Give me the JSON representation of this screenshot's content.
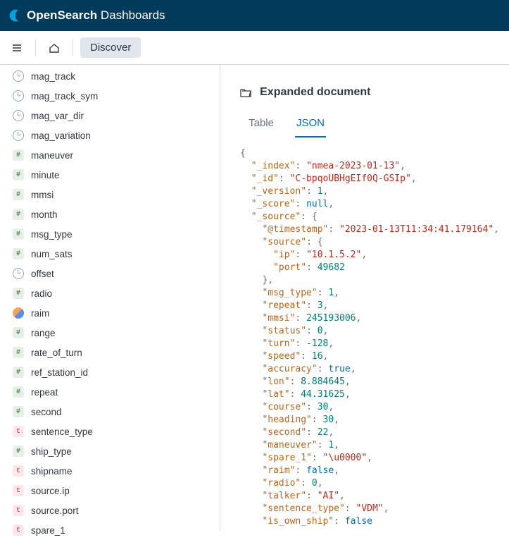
{
  "brand": {
    "part1": "Open",
    "part2": "Search",
    "part3": " Dashboards"
  },
  "nav": {
    "discover_label": "Discover"
  },
  "fields": [
    {
      "name": "mag_track",
      "type": "clock"
    },
    {
      "name": "mag_track_sym",
      "type": "clock"
    },
    {
      "name": "mag_var_dir",
      "type": "clock"
    },
    {
      "name": "mag_variation",
      "type": "clock"
    },
    {
      "name": "maneuver",
      "type": "num"
    },
    {
      "name": "minute",
      "type": "num"
    },
    {
      "name": "mmsi",
      "type": "num"
    },
    {
      "name": "month",
      "type": "num"
    },
    {
      "name": "msg_type",
      "type": "num"
    },
    {
      "name": "num_sats",
      "type": "num"
    },
    {
      "name": "offset",
      "type": "clock"
    },
    {
      "name": "radio",
      "type": "num"
    },
    {
      "name": "raim",
      "type": "bool"
    },
    {
      "name": "range",
      "type": "num"
    },
    {
      "name": "rate_of_turn",
      "type": "num"
    },
    {
      "name": "ref_station_id",
      "type": "num"
    },
    {
      "name": "repeat",
      "type": "num"
    },
    {
      "name": "second",
      "type": "num"
    },
    {
      "name": "sentence_type",
      "type": "text"
    },
    {
      "name": "ship_type",
      "type": "num"
    },
    {
      "name": "shipname",
      "type": "text"
    },
    {
      "name": "source.ip",
      "type": "text"
    },
    {
      "name": "source.port",
      "type": "text"
    },
    {
      "name": "spare_1",
      "type": "text"
    }
  ],
  "doc_panel": {
    "title": "Expanded document",
    "tabs": {
      "table": "Table",
      "json": "JSON",
      "active": "json"
    }
  },
  "json_lines": [
    {
      "indent": 0,
      "tokens": [
        {
          "t": "punc",
          "v": "{"
        }
      ]
    },
    {
      "indent": 1,
      "tokens": [
        {
          "t": "key",
          "v": "\"_index\""
        },
        {
          "t": "punc",
          "v": ": "
        },
        {
          "t": "str",
          "v": "\"nmea-2023-01-13\""
        },
        {
          "t": "punc",
          "v": ","
        }
      ]
    },
    {
      "indent": 1,
      "tokens": [
        {
          "t": "key",
          "v": "\"_id\""
        },
        {
          "t": "punc",
          "v": ": "
        },
        {
          "t": "str",
          "v": "\"C-bpqoUBHgEIf0Q-GSIp\""
        },
        {
          "t": "punc",
          "v": ","
        }
      ]
    },
    {
      "indent": 1,
      "tokens": [
        {
          "t": "key",
          "v": "\"_version\""
        },
        {
          "t": "punc",
          "v": ": "
        },
        {
          "t": "num",
          "v": "1"
        },
        {
          "t": "punc",
          "v": ","
        }
      ]
    },
    {
      "indent": 1,
      "tokens": [
        {
          "t": "key",
          "v": "\"_score\""
        },
        {
          "t": "punc",
          "v": ": "
        },
        {
          "t": "null",
          "v": "null"
        },
        {
          "t": "punc",
          "v": ","
        }
      ]
    },
    {
      "indent": 1,
      "tokens": [
        {
          "t": "key",
          "v": "\"_source\""
        },
        {
          "t": "punc",
          "v": ": {"
        }
      ]
    },
    {
      "indent": 2,
      "tokens": [
        {
          "t": "key",
          "v": "\"@timestamp\""
        },
        {
          "t": "punc",
          "v": ": "
        },
        {
          "t": "str",
          "v": "\"2023-01-13T11:34:41.179164\""
        },
        {
          "t": "punc",
          "v": ","
        }
      ]
    },
    {
      "indent": 2,
      "tokens": [
        {
          "t": "key",
          "v": "\"source\""
        },
        {
          "t": "punc",
          "v": ": {"
        }
      ]
    },
    {
      "indent": 3,
      "tokens": [
        {
          "t": "key",
          "v": "\"ip\""
        },
        {
          "t": "punc",
          "v": ": "
        },
        {
          "t": "str",
          "v": "\"10.1.5.2\""
        },
        {
          "t": "punc",
          "v": ","
        }
      ]
    },
    {
      "indent": 3,
      "tokens": [
        {
          "t": "key",
          "v": "\"port\""
        },
        {
          "t": "punc",
          "v": ": "
        },
        {
          "t": "num",
          "v": "49682"
        }
      ]
    },
    {
      "indent": 2,
      "tokens": [
        {
          "t": "punc",
          "v": "},"
        }
      ]
    },
    {
      "indent": 2,
      "tokens": [
        {
          "t": "key",
          "v": "\"msg_type\""
        },
        {
          "t": "punc",
          "v": ": "
        },
        {
          "t": "num",
          "v": "1"
        },
        {
          "t": "punc",
          "v": ","
        }
      ]
    },
    {
      "indent": 2,
      "tokens": [
        {
          "t": "key",
          "v": "\"repeat\""
        },
        {
          "t": "punc",
          "v": ": "
        },
        {
          "t": "num",
          "v": "3"
        },
        {
          "t": "punc",
          "v": ","
        }
      ]
    },
    {
      "indent": 2,
      "tokens": [
        {
          "t": "key",
          "v": "\"mmsi\""
        },
        {
          "t": "punc",
          "v": ": "
        },
        {
          "t": "num",
          "v": "245193006"
        },
        {
          "t": "punc",
          "v": ","
        }
      ]
    },
    {
      "indent": 2,
      "tokens": [
        {
          "t": "key",
          "v": "\"status\""
        },
        {
          "t": "punc",
          "v": ": "
        },
        {
          "t": "num",
          "v": "0"
        },
        {
          "t": "punc",
          "v": ","
        }
      ]
    },
    {
      "indent": 2,
      "tokens": [
        {
          "t": "key",
          "v": "\"turn\""
        },
        {
          "t": "punc",
          "v": ": "
        },
        {
          "t": "num",
          "v": "-128"
        },
        {
          "t": "punc",
          "v": ","
        }
      ]
    },
    {
      "indent": 2,
      "tokens": [
        {
          "t": "key",
          "v": "\"speed\""
        },
        {
          "t": "punc",
          "v": ": "
        },
        {
          "t": "num",
          "v": "16"
        },
        {
          "t": "punc",
          "v": ","
        }
      ]
    },
    {
      "indent": 2,
      "tokens": [
        {
          "t": "key",
          "v": "\"accuracy\""
        },
        {
          "t": "punc",
          "v": ": "
        },
        {
          "t": "bool",
          "v": "true"
        },
        {
          "t": "punc",
          "v": ","
        }
      ]
    },
    {
      "indent": 2,
      "tokens": [
        {
          "t": "key",
          "v": "\"lon\""
        },
        {
          "t": "punc",
          "v": ": "
        },
        {
          "t": "num",
          "v": "8.884645"
        },
        {
          "t": "punc",
          "v": ","
        }
      ]
    },
    {
      "indent": 2,
      "tokens": [
        {
          "t": "key",
          "v": "\"lat\""
        },
        {
          "t": "punc",
          "v": ": "
        },
        {
          "t": "num",
          "v": "44.31625"
        },
        {
          "t": "punc",
          "v": ","
        }
      ]
    },
    {
      "indent": 2,
      "tokens": [
        {
          "t": "key",
          "v": "\"course\""
        },
        {
          "t": "punc",
          "v": ": "
        },
        {
          "t": "num",
          "v": "30"
        },
        {
          "t": "punc",
          "v": ","
        }
      ]
    },
    {
      "indent": 2,
      "tokens": [
        {
          "t": "key",
          "v": "\"heading\""
        },
        {
          "t": "punc",
          "v": ": "
        },
        {
          "t": "num",
          "v": "30"
        },
        {
          "t": "punc",
          "v": ","
        }
      ]
    },
    {
      "indent": 2,
      "tokens": [
        {
          "t": "key",
          "v": "\"second\""
        },
        {
          "t": "punc",
          "v": ": "
        },
        {
          "t": "num",
          "v": "22"
        },
        {
          "t": "punc",
          "v": ","
        }
      ]
    },
    {
      "indent": 2,
      "tokens": [
        {
          "t": "key",
          "v": "\"maneuver\""
        },
        {
          "t": "punc",
          "v": ": "
        },
        {
          "t": "num",
          "v": "1"
        },
        {
          "t": "punc",
          "v": ","
        }
      ]
    },
    {
      "indent": 2,
      "tokens": [
        {
          "t": "key",
          "v": "\"spare_1\""
        },
        {
          "t": "punc",
          "v": ": "
        },
        {
          "t": "str",
          "v": "\"\\u0000\""
        },
        {
          "t": "punc",
          "v": ","
        }
      ]
    },
    {
      "indent": 2,
      "tokens": [
        {
          "t": "key",
          "v": "\"raim\""
        },
        {
          "t": "punc",
          "v": ": "
        },
        {
          "t": "bool",
          "v": "false"
        },
        {
          "t": "punc",
          "v": ","
        }
      ]
    },
    {
      "indent": 2,
      "tokens": [
        {
          "t": "key",
          "v": "\"radio\""
        },
        {
          "t": "punc",
          "v": ": "
        },
        {
          "t": "num",
          "v": "0"
        },
        {
          "t": "punc",
          "v": ","
        }
      ]
    },
    {
      "indent": 2,
      "tokens": [
        {
          "t": "key",
          "v": "\"talker\""
        },
        {
          "t": "punc",
          "v": ": "
        },
        {
          "t": "str",
          "v": "\"AI\""
        },
        {
          "t": "punc",
          "v": ","
        }
      ]
    },
    {
      "indent": 2,
      "tokens": [
        {
          "t": "key",
          "v": "\"sentence_type\""
        },
        {
          "t": "punc",
          "v": ": "
        },
        {
          "t": "str",
          "v": "\"VDM\""
        },
        {
          "t": "punc",
          "v": ","
        }
      ]
    },
    {
      "indent": 2,
      "tokens": [
        {
          "t": "key",
          "v": "\"is_own_ship\""
        },
        {
          "t": "punc",
          "v": ": "
        },
        {
          "t": "bool",
          "v": "false"
        }
      ]
    }
  ],
  "colors": {
    "brand_bg": "#003b5c",
    "accent": "#006bb4",
    "key": "#b5651d",
    "str": "#bd271e",
    "num": "#017d73",
    "boolnull": "#006bb4",
    "punc": "#69707d"
  }
}
